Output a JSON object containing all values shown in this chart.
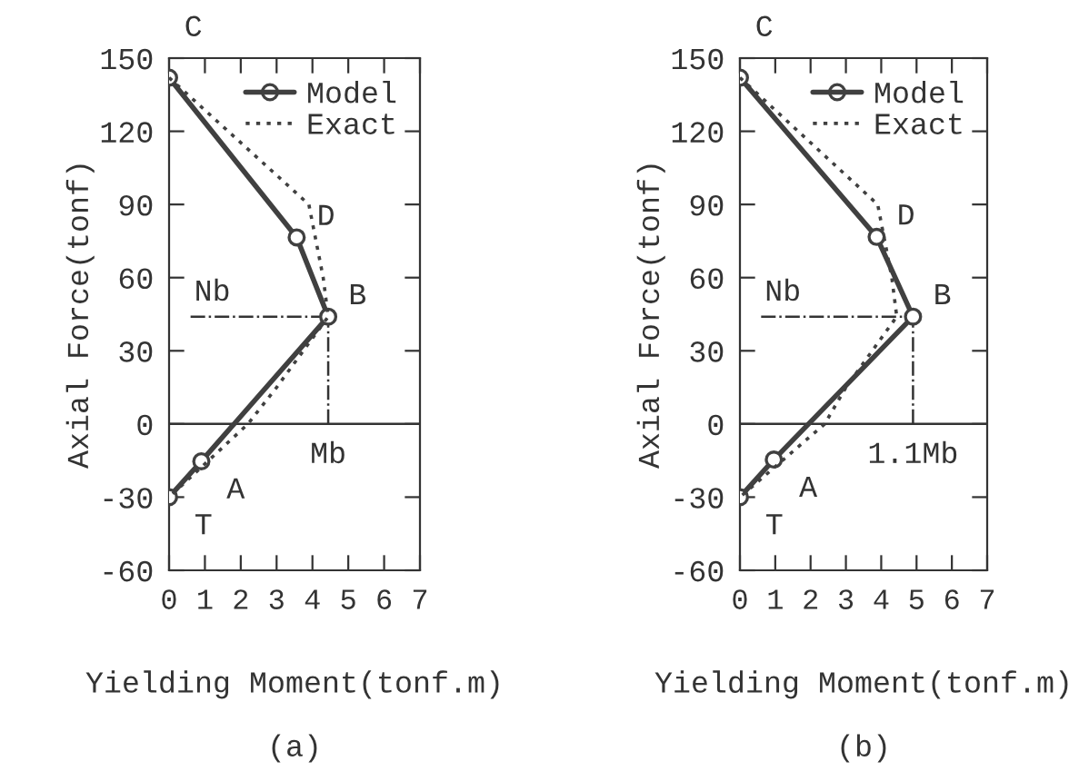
{
  "chart_data": [
    {
      "type": "line",
      "xlabel": "Yielding Moment(tonf.m)",
      "ylabel": "Axial Force(tonf)",
      "xlim": [
        0,
        7
      ],
      "xticks": [
        0,
        1,
        2,
        3,
        4,
        5,
        6,
        7
      ],
      "ylim": [
        -60,
        150
      ],
      "yticks": [
        -60,
        -30,
        0,
        30,
        60,
        90,
        120,
        150
      ],
      "legend": "top right",
      "grid": false,
      "series": [
        {
          "name": "Model",
          "color": "#404040",
          "marker": "circle",
          "line_style": "solid",
          "x": [
            0,
            3.56,
            4.44,
            0.9,
            0
          ],
          "values": [
            142,
            76.5,
            44,
            -15.3,
            -30
          ]
        },
        {
          "name": "Exact",
          "color": "#404040",
          "marker": "none",
          "line_style": "dotted",
          "x": [
            0,
            3.9,
            4.3,
            4.44,
            3.0,
            2.2,
            0
          ],
          "values": [
            142,
            90,
            60,
            44,
            15,
            0,
            -30
          ]
        }
      ],
      "ref_lines": [
        {
          "axis": "y",
          "value": 0,
          "line_style": "solid"
        },
        {
          "axis": "y",
          "value": 44,
          "label": "Nb",
          "line_style": "dashed"
        },
        {
          "axis": "x",
          "value": 4.44,
          "label": "Mb",
          "line_style": "dashed"
        }
      ],
      "annotations": [
        {
          "text": "C",
          "x": 0,
          "y": 142
        },
        {
          "text": "D",
          "x": 3.56,
          "y": 76.5
        },
        {
          "text": "B",
          "x": 4.44,
          "y": 44
        },
        {
          "text": "A",
          "x": 0.9,
          "y": -15.3
        },
        {
          "text": "T",
          "x": 0,
          "y": -30
        },
        "(a)"
      ]
    },
    {
      "type": "line",
      "xlabel": "Yielding Moment(tonf.m)",
      "ylabel": "Axial Force(tonf)",
      "xlim": [
        0,
        7
      ],
      "xticks": [
        0,
        1,
        2,
        3,
        4,
        5,
        6,
        7
      ],
      "ylim": [
        -60,
        150
      ],
      "yticks": [
        -60,
        -30,
        0,
        30,
        60,
        90,
        120,
        150
      ],
      "legend": "top right",
      "grid": false,
      "series": [
        {
          "name": "Model",
          "color": "#404040",
          "marker": "circle",
          "line_style": "solid",
          "x": [
            0,
            3.87,
            4.9,
            0.96,
            0
          ],
          "values": [
            142,
            76.7,
            44,
            -14.6,
            -30
          ]
        },
        {
          "name": "Exact",
          "color": "#404040",
          "marker": "none",
          "line_style": "dotted",
          "x": [
            0,
            3.9,
            4.3,
            4.44,
            3.0,
            2.4,
            0
          ],
          "values": [
            142,
            90,
            60,
            44,
            15,
            0,
            -30
          ]
        }
      ],
      "ref_lines": [
        {
          "axis": "y",
          "value": 0,
          "line_style": "solid"
        },
        {
          "axis": "y",
          "value": 44,
          "label": "Nb",
          "line_style": "dashed"
        },
        {
          "axis": "x",
          "value": 4.9,
          "label": "1.1Mb",
          "line_style": "dashed"
        }
      ],
      "annotations": [
        {
          "text": "C",
          "x": 0,
          "y": 142
        },
        {
          "text": "D",
          "x": 3.87,
          "y": 76.7
        },
        {
          "text": "B",
          "x": 4.9,
          "y": 44
        },
        {
          "text": "A",
          "x": 0.96,
          "y": -14.6
        },
        {
          "text": "T",
          "x": 0,
          "y": -30
        },
        "(b)"
      ]
    }
  ]
}
